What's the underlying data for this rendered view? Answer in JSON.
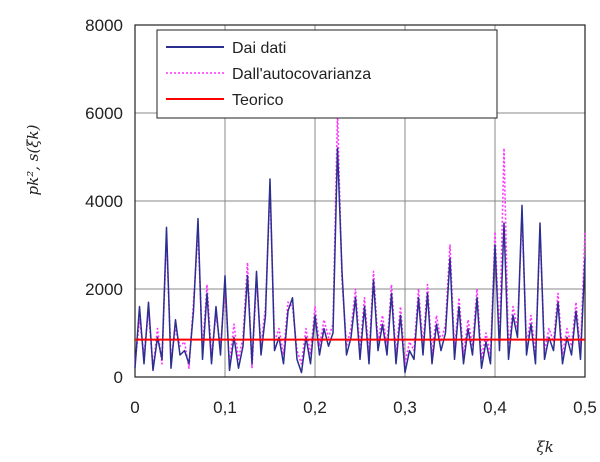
{
  "chart_data": {
    "type": "line",
    "title": "",
    "xlabel": "ξk",
    "ylabel": "pk², s(ξk)",
    "xlim": [
      0,
      0.5
    ],
    "ylim": [
      0,
      8000
    ],
    "xticks": [
      "0",
      "0,1",
      "0,2",
      "0,3",
      "0,4",
      "0,5"
    ],
    "yticks": [
      "0",
      "2000",
      "4000",
      "6000",
      "8000"
    ],
    "xtick_values": [
      0,
      0.1,
      0.2,
      0.3,
      0.4,
      0.5
    ],
    "ytick_values": [
      0,
      2000,
      4000,
      6000,
      8000
    ],
    "grid": true,
    "legend_position": "top-center",
    "series": [
      {
        "name": "Dai dati",
        "color": "#2b2f8f",
        "style": "solid",
        "x": [
          0,
          0.005,
          0.01,
          0.015,
          0.02,
          0.025,
          0.03,
          0.035,
          0.04,
          0.045,
          0.05,
          0.055,
          0.06,
          0.065,
          0.07,
          0.075,
          0.08,
          0.085,
          0.09,
          0.095,
          0.1,
          0.105,
          0.11,
          0.115,
          0.12,
          0.125,
          0.13,
          0.135,
          0.14,
          0.145,
          0.15,
          0.155,
          0.16,
          0.165,
          0.17,
          0.175,
          0.18,
          0.185,
          0.19,
          0.195,
          0.2,
          0.205,
          0.21,
          0.215,
          0.22,
          0.225,
          0.23,
          0.235,
          0.24,
          0.245,
          0.25,
          0.255,
          0.26,
          0.265,
          0.27,
          0.275,
          0.28,
          0.285,
          0.29,
          0.295,
          0.3,
          0.305,
          0.31,
          0.315,
          0.32,
          0.325,
          0.33,
          0.335,
          0.34,
          0.345,
          0.35,
          0.355,
          0.36,
          0.365,
          0.37,
          0.375,
          0.38,
          0.385,
          0.39,
          0.395,
          0.4,
          0.405,
          0.41,
          0.415,
          0.42,
          0.425,
          0.43,
          0.435,
          0.44,
          0.445,
          0.45,
          0.455,
          0.46,
          0.465,
          0.47,
          0.475,
          0.48,
          0.485,
          0.49,
          0.495,
          0.5
        ],
        "values": [
          200,
          1600,
          300,
          1700,
          150,
          900,
          400,
          3400,
          200,
          1300,
          500,
          600,
          300,
          1500,
          3600,
          400,
          1900,
          300,
          1600,
          500,
          2300,
          150,
          900,
          200,
          700,
          2300,
          300,
          2400,
          500,
          1400,
          4500,
          600,
          900,
          300,
          1500,
          1800,
          400,
          100,
          900,
          300,
          1400,
          500,
          1100,
          700,
          1000,
          5200,
          2400,
          500,
          900,
          1800,
          400,
          1600,
          300,
          2200,
          600,
          1200,
          500,
          1900,
          300,
          1400,
          100,
          600,
          400,
          1800,
          500,
          1900,
          300,
          1200,
          600,
          1000,
          2700,
          400,
          1600,
          300,
          1100,
          500,
          1800,
          200,
          800,
          300,
          3000,
          600,
          3500,
          400,
          1400,
          900,
          3900,
          500,
          1200,
          300,
          3500,
          400,
          900,
          600,
          1700,
          300,
          900,
          500,
          1500,
          400,
          2700
        ]
      },
      {
        "name": "Dall'autocovarianza",
        "color": "#ff33ff",
        "style": "dotted",
        "x": [
          0,
          0.005,
          0.01,
          0.015,
          0.02,
          0.025,
          0.03,
          0.035,
          0.04,
          0.045,
          0.05,
          0.055,
          0.06,
          0.065,
          0.07,
          0.075,
          0.08,
          0.085,
          0.09,
          0.095,
          0.1,
          0.105,
          0.11,
          0.115,
          0.12,
          0.125,
          0.13,
          0.135,
          0.14,
          0.145,
          0.15,
          0.155,
          0.16,
          0.165,
          0.17,
          0.175,
          0.18,
          0.185,
          0.19,
          0.195,
          0.2,
          0.205,
          0.21,
          0.215,
          0.22,
          0.225,
          0.23,
          0.235,
          0.24,
          0.245,
          0.25,
          0.255,
          0.26,
          0.265,
          0.27,
          0.275,
          0.28,
          0.285,
          0.29,
          0.295,
          0.3,
          0.305,
          0.31,
          0.315,
          0.32,
          0.325,
          0.33,
          0.335,
          0.34,
          0.345,
          0.35,
          0.355,
          0.36,
          0.365,
          0.37,
          0.375,
          0.38,
          0.385,
          0.39,
          0.395,
          0.4,
          0.405,
          0.41,
          0.415,
          0.42,
          0.425,
          0.43,
          0.435,
          0.44,
          0.445,
          0.45,
          0.455,
          0.46,
          0.465,
          0.47,
          0.475,
          0.48,
          0.485,
          0.49,
          0.495,
          0.5
        ],
        "values": [
          300,
          1300,
          500,
          1500,
          200,
          1100,
          300,
          3200,
          400,
          1100,
          700,
          800,
          200,
          1700,
          3300,
          600,
          2100,
          500,
          1400,
          700,
          2000,
          300,
          1200,
          400,
          900,
          2600,
          200,
          2200,
          700,
          1600,
          4300,
          800,
          1100,
          500,
          1700,
          1600,
          600,
          300,
          1100,
          500,
          1600,
          700,
          1300,
          900,
          1200,
          6000,
          2200,
          700,
          1100,
          2000,
          600,
          1800,
          500,
          2400,
          800,
          1400,
          700,
          2100,
          500,
          1600,
          300,
          800,
          600,
          2000,
          700,
          2100,
          500,
          1400,
          800,
          1200,
          3000,
          600,
          1800,
          500,
          1300,
          700,
          2000,
          400,
          1000,
          500,
          3300,
          800,
          5200,
          600,
          1600,
          1100,
          3700,
          700,
          1400,
          500,
          3300,
          600,
          1100,
          800,
          1900,
          500,
          1100,
          700,
          1700,
          600,
          3300
        ]
      },
      {
        "name": "Teorico",
        "color": "#ff0000",
        "style": "solid",
        "x": [
          0,
          0.5
        ],
        "values": [
          850,
          850
        ]
      }
    ]
  }
}
